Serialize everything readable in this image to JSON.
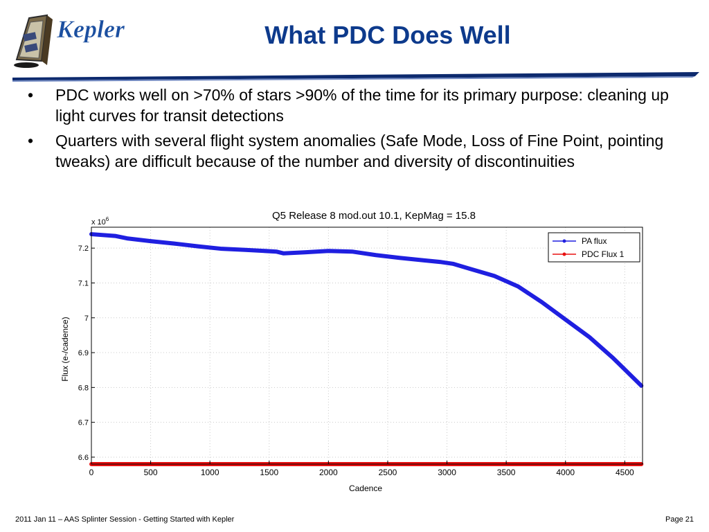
{
  "header": {
    "logo_text": "Kepler",
    "title": "What PDC Does Well"
  },
  "bullets": [
    "PDC works well on >70% of stars >90% of the time for its primary purpose:  cleaning up light curves for transit detections",
    "Quarters with several flight system anomalies (Safe Mode, Loss of Fine Point, pointing tweaks) are difficult because of the number and diversity of discontinuities"
  ],
  "bullet_symbol": "•",
  "footer": {
    "left": "2011 Jan 11 – AAS Splinter Session - Getting Started with Kepler",
    "right": "Page 21"
  },
  "colors": {
    "title": "#0d3a8c",
    "pa_flux": "#1f1fe0",
    "pdc_flux": "#e81010",
    "rule": "#0d2a6e"
  },
  "chart_data": {
    "type": "line",
    "title": "Q5 Release 8 mod.out 10.1, KepMag = 15.8",
    "xlabel": "Cadence",
    "ylabel": "Flux (e-/cadence)",
    "y_multiplier": "x 10",
    "y_multiplier_exp": "6",
    "xlim": [
      0,
      4650
    ],
    "ylim": [
      6.58,
      7.26
    ],
    "xticks": [
      0,
      500,
      1000,
      1500,
      2000,
      2500,
      3000,
      3500,
      4000,
      4500
    ],
    "yticks": [
      6.6,
      6.7,
      6.8,
      6.9,
      7,
      7.1,
      7.2
    ],
    "ytick_labels": [
      "6.6",
      "6.7",
      "6.8",
      "6.9",
      "7",
      "7.1",
      "7.2"
    ],
    "grid": true,
    "legend_position": "top-right",
    "series": [
      {
        "name": "PA flux",
        "x": [
          0,
          200,
          300,
          500,
          700,
          900,
          1100,
          1300,
          1560,
          1620,
          1800,
          2000,
          2200,
          2400,
          2600,
          2800,
          2950,
          3050,
          3200,
          3400,
          3600,
          3800,
          4000,
          4200,
          4400,
          4550,
          4640
        ],
        "y": [
          7.24,
          7.235,
          7.228,
          7.22,
          7.213,
          7.205,
          7.198,
          7.195,
          7.19,
          7.185,
          7.188,
          7.192,
          7.19,
          7.18,
          7.172,
          7.165,
          7.16,
          7.155,
          7.14,
          7.12,
          7.09,
          7.045,
          6.995,
          6.945,
          6.885,
          6.835,
          6.805
        ]
      },
      {
        "name": "PDC Flux 1",
        "x": [
          0,
          500,
          1000,
          1500,
          2000,
          2500,
          3000,
          3500,
          4000,
          4500,
          4640
        ],
        "y": [
          6.58,
          6.58,
          6.58,
          6.58,
          6.58,
          6.58,
          6.58,
          6.58,
          6.58,
          6.58,
          6.58
        ]
      }
    ]
  }
}
